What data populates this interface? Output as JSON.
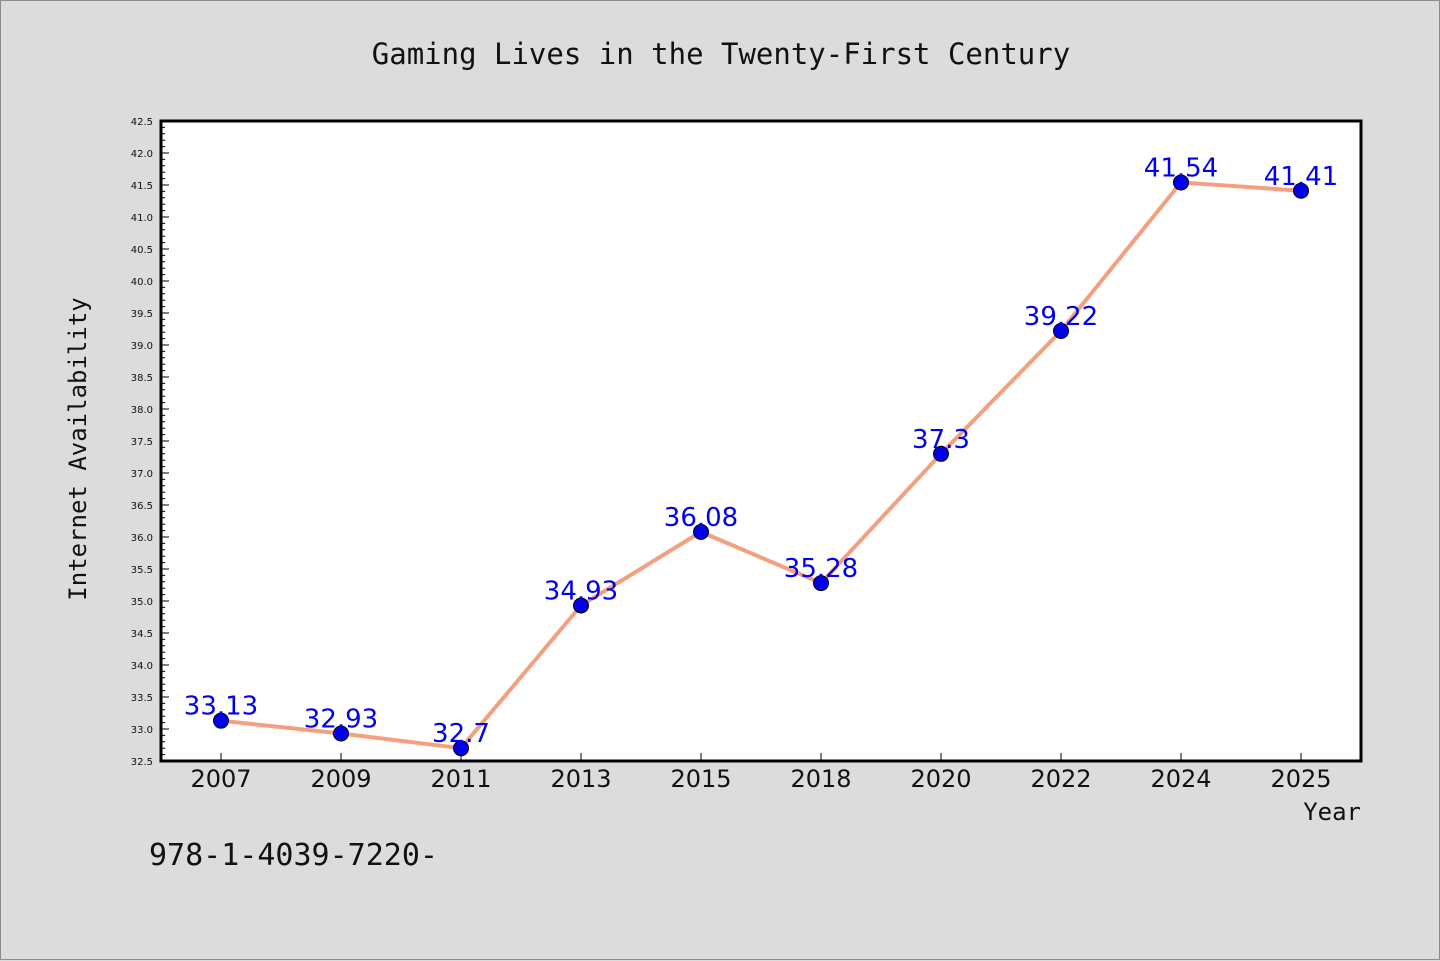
{
  "chart_data": {
    "type": "line",
    "title": "Gaming Lives in the Twenty-First Century",
    "xlabel": "Year",
    "ylabel": "Internet Availability",
    "categories": [
      "2007",
      "2009",
      "2011",
      "2013",
      "2015",
      "2018",
      "2020",
      "2022",
      "2024",
      "2025"
    ],
    "values": [
      33.13,
      32.93,
      32.7,
      34.93,
      36.08,
      35.28,
      37.3,
      39.22,
      41.54,
      41.41
    ],
    "data_labels": [
      "33.13",
      "32.93",
      "32.7",
      "34.93",
      "36.08",
      "35.28",
      "37.3",
      "39.22",
      "41.54",
      "41.41"
    ],
    "ylim": [
      32.5,
      42.5
    ],
    "yticks": [
      "32.5",
      "33.0",
      "33.5",
      "34.0",
      "34.5",
      "35.0",
      "35.5",
      "36.0",
      "36.5",
      "37.0",
      "37.5",
      "38.0",
      "38.5",
      "39.0",
      "39.5",
      "40.0",
      "40.5",
      "41.0",
      "41.5",
      "42.0",
      "42.5"
    ],
    "grid": false,
    "legend": "none",
    "line_color": "#f4a080",
    "marker_color": "#0000ee",
    "label_color": "#0000ee"
  },
  "footer": {
    "isbn": "978-1-4039-7220-"
  }
}
